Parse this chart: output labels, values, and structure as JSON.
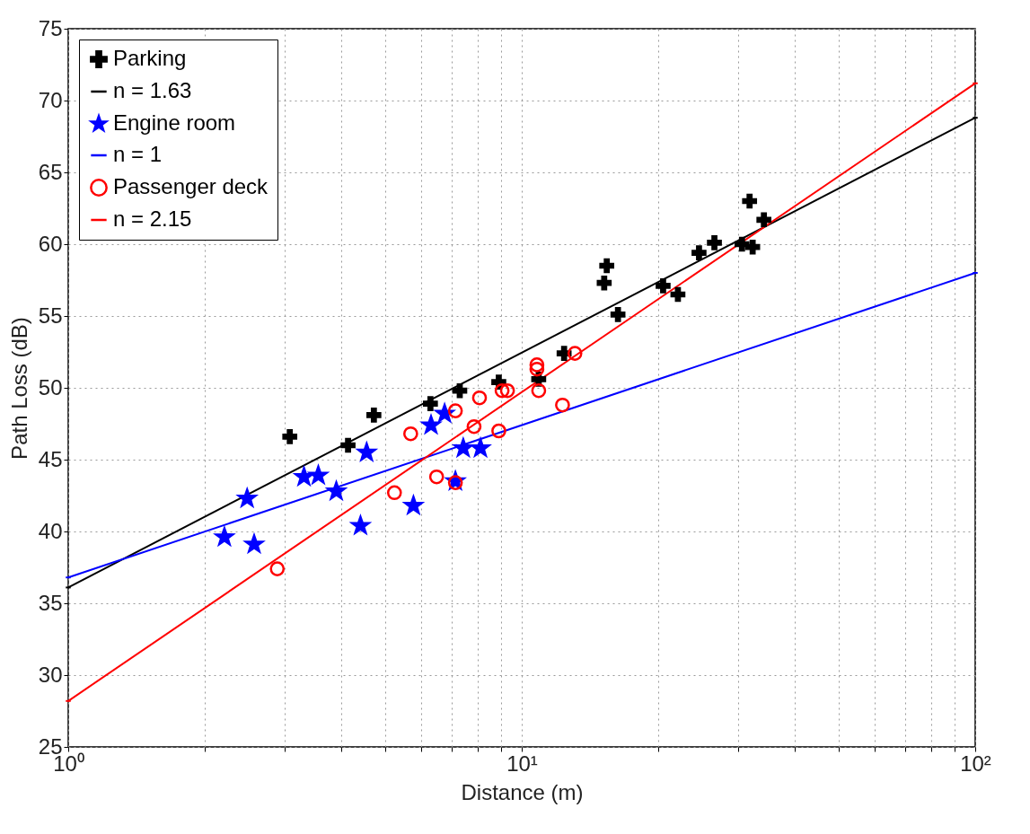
{
  "chart_data": {
    "type": "scatter",
    "xlabel": "Distance (m)",
    "ylabel": "Path Loss (dB)",
    "log": "x",
    "grid": true,
    "legend": "top left",
    "xlim": [
      1,
      100
    ],
    "ylim": [
      25,
      75
    ],
    "xticks": [
      {
        "value": 1,
        "label": "10⁰"
      },
      {
        "value": 2,
        "label": null
      },
      {
        "value": 3,
        "label": null
      },
      {
        "value": 4,
        "label": null
      },
      {
        "value": 5,
        "label": null
      },
      {
        "value": 6,
        "label": null
      },
      {
        "value": 7,
        "label": null
      },
      {
        "value": 8,
        "label": null
      },
      {
        "value": 9,
        "label": null
      },
      {
        "value": 10,
        "label": "10¹"
      },
      {
        "value": 20,
        "label": null
      },
      {
        "value": 30,
        "label": null
      },
      {
        "value": 40,
        "label": null
      },
      {
        "value": 50,
        "label": null
      },
      {
        "value": 60,
        "label": null
      },
      {
        "value": 70,
        "label": null
      },
      {
        "value": 80,
        "label": null
      },
      {
        "value": 90,
        "label": null
      },
      {
        "value": 100,
        "label": "10²"
      }
    ],
    "yticks": [
      25,
      30,
      35,
      40,
      45,
      50,
      55,
      60,
      65,
      70,
      75
    ],
    "series": [
      {
        "name": "Parking",
        "marker": "cross",
        "color": "#000000",
        "x": [
          3.08,
          4.14,
          4.72,
          6.29,
          7.3,
          8.9,
          10.9,
          12.4,
          15.2,
          15.4,
          16.3,
          20.5,
          22.1,
          24.6,
          26.6,
          30.6,
          32.3,
          31.8,
          34.2
        ],
        "values": [
          46.6,
          46.0,
          48.1,
          48.9,
          49.8,
          50.4,
          50.6,
          52.4,
          57.3,
          58.5,
          55.1,
          57.1,
          56.5,
          59.4,
          60.1,
          60.0,
          59.8,
          63.0,
          61.7
        ]
      },
      {
        "name": "n = 1.63",
        "type": "line",
        "marker": "none",
        "line_style": "solid",
        "color": "#000000",
        "x": [
          1,
          100
        ],
        "values": [
          36.1,
          68.8
        ]
      },
      {
        "name": "Engine room",
        "marker": "star",
        "color": "#0000ff",
        "x": [
          2.21,
          2.48,
          2.57,
          3.31,
          3.56,
          3.9,
          4.41,
          4.55,
          5.77,
          6.31,
          6.76,
          7.14,
          7.43,
          8.11
        ],
        "values": [
          39.6,
          42.3,
          39.1,
          43.8,
          43.9,
          42.8,
          40.4,
          45.5,
          41.8,
          47.4,
          48.2,
          43.5,
          45.8,
          45.8
        ]
      },
      {
        "name": "n = 1",
        "type": "line",
        "marker": "none",
        "line_style": "solid",
        "color": "#0000ff",
        "x": [
          1,
          100
        ],
        "values": [
          36.8,
          58.0
        ]
      },
      {
        "name": "Passenger deck",
        "marker": "circle",
        "color": "#ff0000",
        "x": [
          2.89,
          5.24,
          5.69,
          6.49,
          7.14,
          7.14,
          7.85,
          8.07,
          8.9,
          9.05,
          9.3,
          10.8,
          10.8,
          10.9,
          12.3,
          13.1
        ],
        "values": [
          37.4,
          42.7,
          46.8,
          43.8,
          43.4,
          48.4,
          47.3,
          49.3,
          47.0,
          49.8,
          49.8,
          51.3,
          51.6,
          49.8,
          48.8,
          52.4
        ]
      },
      {
        "name": "n = 2.15",
        "type": "line",
        "marker": "none",
        "line_style": "solid",
        "color": "#ff0000",
        "x": [
          1,
          100
        ],
        "values": [
          28.2,
          71.2
        ]
      }
    ]
  }
}
